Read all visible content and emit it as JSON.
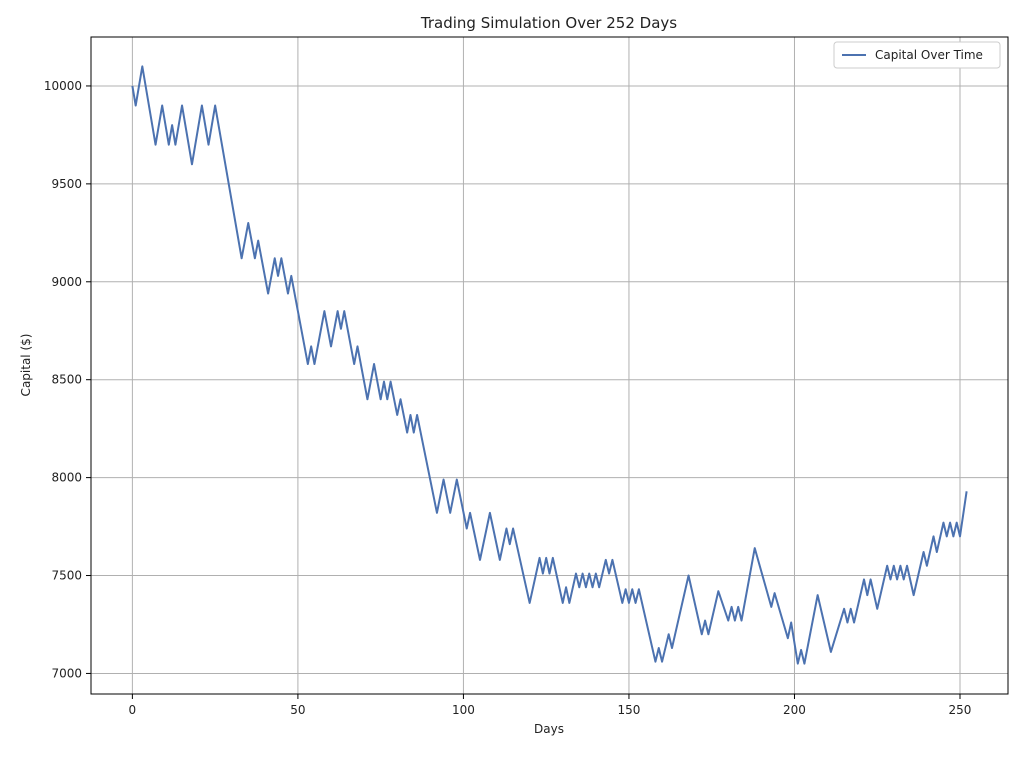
{
  "chart_data": {
    "type": "line",
    "title": "Trading Simulation Over 252 Days",
    "xlabel": "Days",
    "ylabel": "Capital ($)",
    "xlim": [
      -12.5,
      264.5
    ],
    "ylim": [
      6895,
      10250
    ],
    "xticks": [
      0,
      50,
      100,
      150,
      200,
      250
    ],
    "yticks": [
      7000,
      7500,
      8000,
      8500,
      9000,
      9500,
      10000
    ],
    "grid": true,
    "legend": "top-right",
    "color": "#4c72b0",
    "series": [
      {
        "name": "Capital Over Time",
        "points": [
          [
            0,
            10000
          ],
          [
            1,
            9900
          ],
          [
            3,
            10100
          ],
          [
            7,
            9700
          ],
          [
            9,
            9900
          ],
          [
            11,
            9700
          ],
          [
            12,
            9800
          ],
          [
            13,
            9700
          ],
          [
            15,
            9900
          ],
          [
            18,
            9600
          ],
          [
            21,
            9900
          ],
          [
            23,
            9700
          ],
          [
            25,
            9900
          ],
          [
            33,
            9120
          ],
          [
            35,
            9300
          ],
          [
            37,
            9120
          ],
          [
            38,
            9210
          ],
          [
            41,
            8940
          ],
          [
            43,
            9120
          ],
          [
            44,
            9030
          ],
          [
            45,
            9120
          ],
          [
            47,
            8940
          ],
          [
            48,
            9030
          ],
          [
            53,
            8580
          ],
          [
            54,
            8670
          ],
          [
            55,
            8580
          ],
          [
            58,
            8850
          ],
          [
            60,
            8670
          ],
          [
            62,
            8850
          ],
          [
            63,
            8760
          ],
          [
            64,
            8850
          ],
          [
            67,
            8580
          ],
          [
            68,
            8670
          ],
          [
            71,
            8400
          ],
          [
            73,
            8580
          ],
          [
            75,
            8400
          ],
          [
            76,
            8490
          ],
          [
            77,
            8400
          ],
          [
            78,
            8490
          ],
          [
            80,
            8320
          ],
          [
            81,
            8400
          ],
          [
            83,
            8230
          ],
          [
            84,
            8320
          ],
          [
            85,
            8230
          ],
          [
            86,
            8320
          ],
          [
            92,
            7820
          ],
          [
            94,
            7990
          ],
          [
            96,
            7820
          ],
          [
            98,
            7990
          ],
          [
            101,
            7740
          ],
          [
            102,
            7820
          ],
          [
            105,
            7580
          ],
          [
            108,
            7820
          ],
          [
            111,
            7580
          ],
          [
            113,
            7740
          ],
          [
            114,
            7660
          ],
          [
            115,
            7740
          ],
          [
            120,
            7360
          ],
          [
            123,
            7590
          ],
          [
            124,
            7510
          ],
          [
            125,
            7590
          ],
          [
            126,
            7510
          ],
          [
            127,
            7590
          ],
          [
            130,
            7360
          ],
          [
            131,
            7440
          ],
          [
            132,
            7360
          ],
          [
            134,
            7510
          ],
          [
            135,
            7440
          ],
          [
            136,
            7510
          ],
          [
            137,
            7440
          ],
          [
            138,
            7510
          ],
          [
            139,
            7440
          ],
          [
            140,
            7510
          ],
          [
            141,
            7440
          ],
          [
            143,
            7580
          ],
          [
            144,
            7510
          ],
          [
            145,
            7580
          ],
          [
            148,
            7360
          ],
          [
            149,
            7430
          ],
          [
            150,
            7360
          ],
          [
            151,
            7430
          ],
          [
            152,
            7360
          ],
          [
            153,
            7430
          ],
          [
            158,
            7060
          ],
          [
            159,
            7130
          ],
          [
            160,
            7060
          ],
          [
            162,
            7200
          ],
          [
            163,
            7130
          ],
          [
            168,
            7500
          ],
          [
            172,
            7200
          ],
          [
            173,
            7270
          ],
          [
            174,
            7200
          ],
          [
            177,
            7420
          ],
          [
            180,
            7270
          ],
          [
            181,
            7340
          ],
          [
            182,
            7270
          ],
          [
            183,
            7340
          ],
          [
            184,
            7270
          ],
          [
            188,
            7640
          ],
          [
            193,
            7340
          ],
          [
            194,
            7410
          ],
          [
            198,
            7180
          ],
          [
            199,
            7260
          ],
          [
            201,
            7050
          ],
          [
            202,
            7120
          ],
          [
            203,
            7050
          ],
          [
            207,
            7400
          ],
          [
            211,
            7110
          ],
          [
            215,
            7330
          ],
          [
            216,
            7260
          ],
          [
            217,
            7330
          ],
          [
            218,
            7260
          ],
          [
            221,
            7480
          ],
          [
            222,
            7400
          ],
          [
            223,
            7480
          ],
          [
            225,
            7330
          ],
          [
            228,
            7550
          ],
          [
            229,
            7480
          ],
          [
            230,
            7550
          ],
          [
            231,
            7480
          ],
          [
            232,
            7550
          ],
          [
            233,
            7480
          ],
          [
            234,
            7550
          ],
          [
            236,
            7400
          ],
          [
            239,
            7620
          ],
          [
            240,
            7550
          ],
          [
            242,
            7700
          ],
          [
            243,
            7620
          ],
          [
            245,
            7770
          ],
          [
            246,
            7700
          ],
          [
            247,
            7770
          ],
          [
            248,
            7700
          ],
          [
            249,
            7770
          ],
          [
            250,
            7700
          ],
          [
            252,
            7930
          ]
        ]
      }
    ]
  }
}
